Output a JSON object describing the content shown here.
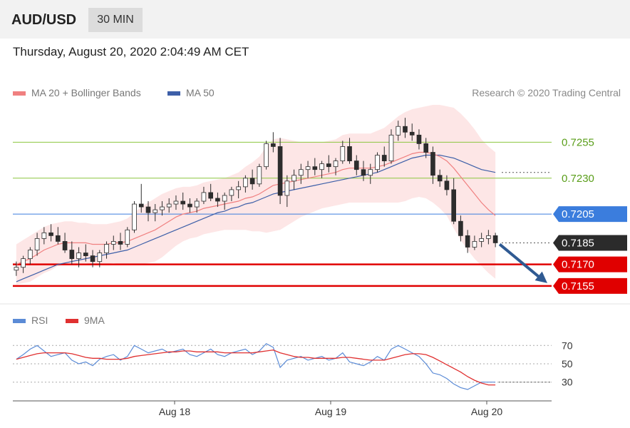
{
  "header": {
    "pair": "AUD/USD",
    "timeframe": "30 MIN"
  },
  "timestamp": "Thursday, August 20, 2020 2:04:49 AM CET",
  "legend": {
    "ma20_label": "MA 20 + Bollinger Bands",
    "ma50_label": "MA 50",
    "credit": "Research © 2020 Trading Central",
    "rsi_label": "RSI",
    "rsi_ma_label": "9MA"
  },
  "colors": {
    "ma20": "#f08080",
    "ma50": "#3d5fa8",
    "band": "#fde2e2",
    "candle": "#2d2d2d",
    "resistance": "#8cc63f",
    "pivot": "#3b7ddd",
    "support": "#e00000",
    "current": "#2b2b2b",
    "rsi": "#5b8bd6",
    "rsi_ma": "#e03030",
    "arrow": "#2f5a92"
  },
  "chart_data": [
    {
      "type": "candlestick",
      "x_labels": [
        "Aug 18",
        "Aug 19",
        "Aug 20"
      ],
      "ylim": [
        0.7148,
        0.7282
      ],
      "candles": [
        [
          0.7166,
          0.7172,
          0.7162,
          0.7168
        ],
        [
          0.7168,
          0.7176,
          0.7164,
          0.7174
        ],
        [
          0.7174,
          0.7182,
          0.717,
          0.718
        ],
        [
          0.718,
          0.7192,
          0.7176,
          0.7188
        ],
        [
          0.7188,
          0.7196,
          0.7184,
          0.7192
        ],
        [
          0.7192,
          0.7198,
          0.7186,
          0.719
        ],
        [
          0.719,
          0.7196,
          0.7184,
          0.7186
        ],
        [
          0.7186,
          0.7192,
          0.7178,
          0.718
        ],
        [
          0.718,
          0.7186,
          0.717,
          0.7174
        ],
        [
          0.7174,
          0.7182,
          0.7168,
          0.7178
        ],
        [
          0.7178,
          0.7184,
          0.7172,
          0.7176
        ],
        [
          0.7176,
          0.718,
          0.7168,
          0.7172
        ],
        [
          0.7172,
          0.718,
          0.7168,
          0.7178
        ],
        [
          0.7178,
          0.7186,
          0.7174,
          0.7184
        ],
        [
          0.7184,
          0.719,
          0.718,
          0.7186
        ],
        [
          0.7186,
          0.7192,
          0.718,
          0.7184
        ],
        [
          0.7184,
          0.7196,
          0.7182,
          0.7194
        ],
        [
          0.7194,
          0.7214,
          0.7192,
          0.7212
        ],
        [
          0.7212,
          0.7226,
          0.7206,
          0.721
        ],
        [
          0.721,
          0.7214,
          0.72,
          0.7206
        ],
        [
          0.7206,
          0.7212,
          0.72,
          0.7208
        ],
        [
          0.7208,
          0.7214,
          0.7204,
          0.721
        ],
        [
          0.721,
          0.7216,
          0.7206,
          0.7212
        ],
        [
          0.7212,
          0.7218,
          0.7208,
          0.7214
        ],
        [
          0.7214,
          0.722,
          0.7208,
          0.7212
        ],
        [
          0.7212,
          0.7216,
          0.7206,
          0.721
        ],
        [
          0.721,
          0.7216,
          0.7206,
          0.7214
        ],
        [
          0.7214,
          0.7224,
          0.7212,
          0.722
        ],
        [
          0.722,
          0.7226,
          0.7214,
          0.7216
        ],
        [
          0.7216,
          0.722,
          0.721,
          0.7214
        ],
        [
          0.7214,
          0.722,
          0.7208,
          0.7218
        ],
        [
          0.7218,
          0.7224,
          0.7214,
          0.7222
        ],
        [
          0.7222,
          0.7228,
          0.7216,
          0.7224
        ],
        [
          0.7224,
          0.7232,
          0.722,
          0.723
        ],
        [
          0.723,
          0.7236,
          0.7222,
          0.7226
        ],
        [
          0.7226,
          0.724,
          0.7224,
          0.7238
        ],
        [
          0.7238,
          0.7256,
          0.7236,
          0.7254
        ],
        [
          0.7254,
          0.7262,
          0.7248,
          0.7252
        ],
        [
          0.7252,
          0.7258,
          0.7212,
          0.7218
        ],
        [
          0.7218,
          0.7232,
          0.721,
          0.7228
        ],
        [
          0.7228,
          0.7236,
          0.7222,
          0.7232
        ],
        [
          0.7232,
          0.724,
          0.7226,
          0.7236
        ],
        [
          0.7236,
          0.7242,
          0.723,
          0.7238
        ],
        [
          0.7238,
          0.7244,
          0.7232,
          0.7236
        ],
        [
          0.7236,
          0.7242,
          0.723,
          0.724
        ],
        [
          0.724,
          0.7246,
          0.7234,
          0.7238
        ],
        [
          0.7238,
          0.7244,
          0.7232,
          0.7242
        ],
        [
          0.7242,
          0.7256,
          0.724,
          0.7252
        ],
        [
          0.7252,
          0.7258,
          0.724,
          0.7242
        ],
        [
          0.7242,
          0.7246,
          0.7232,
          0.7236
        ],
        [
          0.7236,
          0.7242,
          0.7228,
          0.7232
        ],
        [
          0.7232,
          0.724,
          0.7226,
          0.7236
        ],
        [
          0.7236,
          0.7248,
          0.7234,
          0.7246
        ],
        [
          0.7246,
          0.7252,
          0.7238,
          0.7242
        ],
        [
          0.7242,
          0.7264,
          0.724,
          0.726
        ],
        [
          0.726,
          0.727,
          0.7256,
          0.7266
        ],
        [
          0.7266,
          0.7272,
          0.7258,
          0.7262
        ],
        [
          0.7262,
          0.7268,
          0.7256,
          0.726
        ],
        [
          0.726,
          0.7264,
          0.725,
          0.7254
        ],
        [
          0.7254,
          0.7258,
          0.7244,
          0.7248
        ],
        [
          0.7248,
          0.7252,
          0.7226,
          0.7232
        ],
        [
          0.7232,
          0.7236,
          0.7224,
          0.7228
        ],
        [
          0.7228,
          0.7232,
          0.7218,
          0.7222
        ],
        [
          0.7222,
          0.723,
          0.7198,
          0.72
        ],
        [
          0.72,
          0.7204,
          0.7186,
          0.719
        ],
        [
          0.719,
          0.7194,
          0.7178,
          0.7182
        ],
        [
          0.7182,
          0.719,
          0.718,
          0.7186
        ],
        [
          0.7186,
          0.7192,
          0.7182,
          0.7188
        ],
        [
          0.7188,
          0.7194,
          0.7184,
          0.719
        ],
        [
          0.719,
          0.7192,
          0.7182,
          0.7185
        ]
      ],
      "ma20": [
        0.717,
        0.7172,
        0.7174,
        0.7177,
        0.718,
        0.7182,
        0.7184,
        0.7185,
        0.7185,
        0.7185,
        0.7185,
        0.7184,
        0.7184,
        0.7184,
        0.7185,
        0.7185,
        0.7186,
        0.7188,
        0.719,
        0.7192,
        0.7194,
        0.7197,
        0.72,
        0.7203,
        0.7205,
        0.7206,
        0.7207,
        0.7209,
        0.721,
        0.7211,
        0.7212,
        0.7213,
        0.7214,
        0.7216,
        0.7217,
        0.7219,
        0.7222,
        0.7225,
        0.7226,
        0.7227,
        0.7228,
        0.7229,
        0.723,
        0.7231,
        0.7232,
        0.7233,
        0.7234,
        0.7236,
        0.7237,
        0.7237,
        0.7237,
        0.7237,
        0.7238,
        0.7239,
        0.7241,
        0.7243,
        0.7245,
        0.7247,
        0.7248,
        0.7248,
        0.7247,
        0.7245,
        0.7242,
        0.7237,
        0.7231,
        0.7225,
        0.7219,
        0.7213,
        0.7208,
        0.7204
      ],
      "ma50": [
        0.7158,
        0.716,
        0.7162,
        0.7164,
        0.7166,
        0.7168,
        0.717,
        0.7171,
        0.7172,
        0.7173,
        0.7174,
        0.7175,
        0.7176,
        0.7177,
        0.7178,
        0.7179,
        0.718,
        0.7182,
        0.7184,
        0.7186,
        0.7188,
        0.719,
        0.7192,
        0.7194,
        0.7196,
        0.7198,
        0.72,
        0.7202,
        0.7204,
        0.7206,
        0.7207,
        0.7209,
        0.721,
        0.7212,
        0.7213,
        0.7215,
        0.7217,
        0.7219,
        0.722,
        0.7221,
        0.7222,
        0.7223,
        0.7224,
        0.7225,
        0.7226,
        0.7227,
        0.7228,
        0.7229,
        0.723,
        0.7231,
        0.7232,
        0.7233,
        0.7234,
        0.7236,
        0.7238,
        0.724,
        0.7242,
        0.7244,
        0.7245,
        0.7246,
        0.7246,
        0.7246,
        0.7245,
        0.7244,
        0.7242,
        0.724,
        0.7238,
        0.7236,
        0.7235,
        0.7234
      ],
      "bollinger_upper_lower_width": [
        0.0014,
        0.0015,
        0.0016,
        0.0016,
        0.0016,
        0.0016,
        0.0015,
        0.0015,
        0.0015,
        0.0014,
        0.0014,
        0.0014,
        0.0014,
        0.0014,
        0.0014,
        0.0015,
        0.0016,
        0.0018,
        0.002,
        0.0021,
        0.0022,
        0.0022,
        0.0021,
        0.002,
        0.0019,
        0.0018,
        0.0018,
        0.0018,
        0.0018,
        0.0018,
        0.0018,
        0.0019,
        0.002,
        0.0022,
        0.0024,
        0.0026,
        0.003,
        0.0032,
        0.0032,
        0.003,
        0.0028,
        0.0026,
        0.0025,
        0.0024,
        0.0023,
        0.0023,
        0.0023,
        0.0024,
        0.0024,
        0.0024,
        0.0024,
        0.0024,
        0.0025,
        0.0026,
        0.0028,
        0.003,
        0.0031,
        0.0031,
        0.0031,
        0.0032,
        0.0034,
        0.0036,
        0.0038,
        0.0042,
        0.0044,
        0.0045,
        0.0045,
        0.0044,
        0.0044,
        0.0044
      ],
      "levels": [
        {
          "value": 0.7255,
          "label": "0.7255",
          "kind": "resistance"
        },
        {
          "value": 0.723,
          "label": "0.7230",
          "kind": "resistance"
        },
        {
          "value": 0.7205,
          "label": "0.7205",
          "kind": "pivot"
        },
        {
          "value": 0.7185,
          "label": "0.7185",
          "kind": "current"
        },
        {
          "value": 0.717,
          "label": "0.7170",
          "kind": "support"
        },
        {
          "value": 0.7155,
          "label": "0.7155",
          "kind": "support"
        }
      ],
      "arrow": {
        "from": 0.7185,
        "to": 0.7155
      }
    },
    {
      "type": "line",
      "title": "RSI",
      "ylim": [
        15,
        85
      ],
      "y_ticks": [
        "70",
        "50",
        "30"
      ],
      "y_tick_values": [
        70,
        50,
        30
      ],
      "series": [
        {
          "name": "RSI",
          "values": [
            55,
            60,
            66,
            70,
            64,
            58,
            60,
            62,
            54,
            50,
            52,
            48,
            55,
            58,
            60,
            54,
            58,
            70,
            66,
            62,
            64,
            66,
            62,
            64,
            66,
            60,
            58,
            62,
            66,
            60,
            58,
            62,
            64,
            66,
            60,
            64,
            72,
            68,
            46,
            54,
            56,
            58,
            54,
            56,
            58,
            54,
            56,
            62,
            52,
            50,
            48,
            52,
            58,
            54,
            66,
            70,
            66,
            62,
            58,
            50,
            40,
            38,
            34,
            28,
            24,
            22,
            26,
            30,
            30,
            30
          ]
        },
        {
          "name": "9MA",
          "values": [
            55,
            57,
            59,
            61,
            62,
            62,
            62,
            62,
            61,
            59,
            57,
            56,
            56,
            55,
            55,
            55,
            56,
            58,
            59,
            60,
            61,
            62,
            63,
            63,
            64,
            64,
            63,
            63,
            63,
            63,
            62,
            62,
            62,
            62,
            62,
            63,
            64,
            65,
            62,
            60,
            58,
            57,
            57,
            56,
            56,
            56,
            56,
            57,
            57,
            56,
            55,
            54,
            54,
            54,
            56,
            58,
            60,
            61,
            61,
            60,
            57,
            53,
            49,
            45,
            41,
            36,
            32,
            29,
            27,
            27
          ]
        }
      ]
    }
  ]
}
